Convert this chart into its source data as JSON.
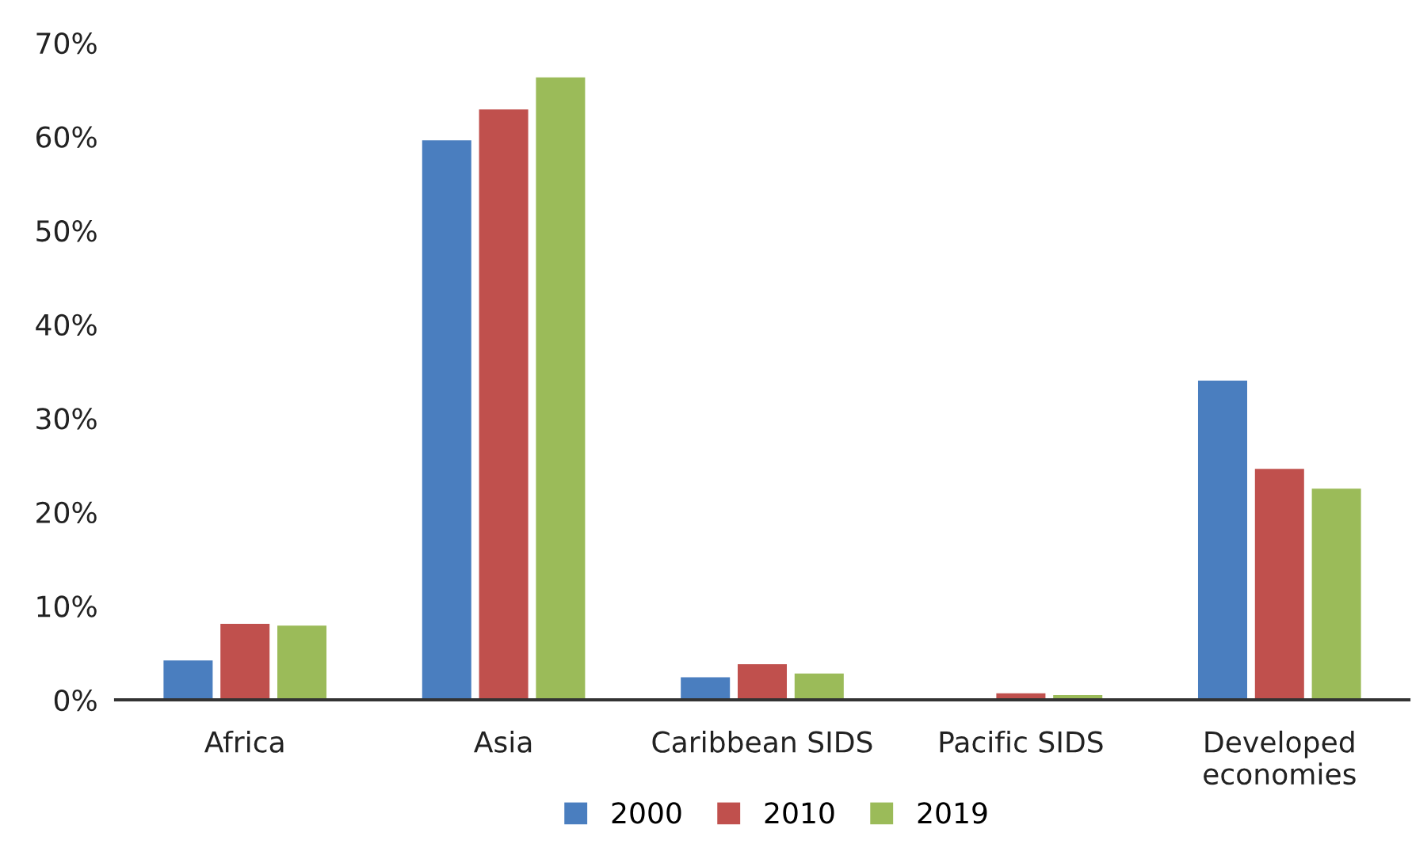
{
  "chart_data": {
    "type": "bar",
    "categories": [
      "Africa",
      "Asia",
      "Caribbean SIDS",
      "Pacific SIDS",
      "Developed\neconomies"
    ],
    "series": [
      {
        "name": "2000",
        "color": "#4a7ebf",
        "values": [
          4.2,
          59.6,
          2.4,
          0,
          34.0
        ]
      },
      {
        "name": "2010",
        "color": "#c0504d",
        "values": [
          8.1,
          62.9,
          3.8,
          0.7,
          24.6
        ]
      },
      {
        "name": "2019",
        "color": "#9bbb59",
        "values": [
          7.9,
          66.3,
          2.8,
          0.5,
          22.5
        ]
      }
    ],
    "ylim": [
      0,
      70
    ],
    "yticks": [
      {
        "value": 0,
        "label": "0%"
      },
      {
        "value": 10,
        "label": "10%"
      },
      {
        "value": 20,
        "label": "20%"
      },
      {
        "value": 30,
        "label": "30%"
      },
      {
        "value": 40,
        "label": "40%"
      },
      {
        "value": 50,
        "label": "50%"
      },
      {
        "value": 60,
        "label": "60%"
      },
      {
        "value": 70,
        "label": "70%"
      }
    ],
    "grid": false,
    "legend": "bottom"
  }
}
